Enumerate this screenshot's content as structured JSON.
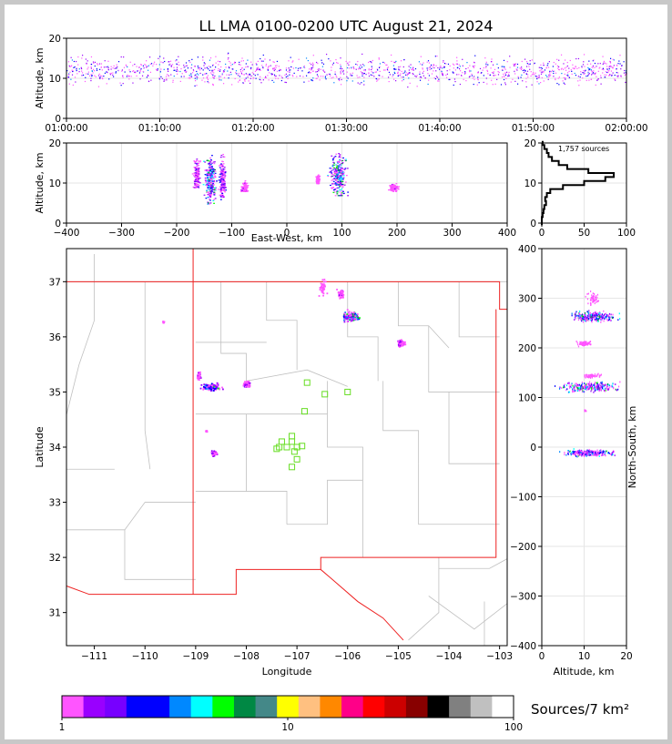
{
  "title": "LL LMA 0100-0200 UTC August 21, 2024",
  "units_label": "Sources/7 km²",
  "source_count_label": "1,757 sources",
  "colors": {
    "frame": "#c8c8c8",
    "boundary": "#ee2222",
    "county_lines": "#c0c0c0",
    "sensor_marker": "#66dd22",
    "grid": "#e6e6e6"
  },
  "chart_data": [
    {
      "id": "time-height",
      "type": "scatter",
      "ylabel": "Altitude, km",
      "ylim": [
        0,
        20
      ],
      "yticks": [
        0,
        10,
        20
      ],
      "xticks": [
        "01:00:00",
        "01:10:00",
        "01:20:00",
        "01:30:00",
        "01:40:00",
        "01:50:00",
        "02:00:00"
      ],
      "x_range_minutes": [
        0,
        60
      ],
      "altitude_band_km": [
        8,
        16
      ],
      "peak_altitude_km": 12
    },
    {
      "id": "ew-height",
      "type": "scatter",
      "xlabel": "East-West, km",
      "ylabel": "Altitude, km",
      "xlim": [
        -400,
        400
      ],
      "ylim": [
        0,
        20
      ],
      "xticks": [
        -400,
        -300,
        -200,
        -100,
        0,
        100,
        200,
        300,
        400
      ],
      "yticks": [
        0,
        10,
        20
      ],
      "clusters": [
        {
          "ew_km": -165,
          "width_km": 8,
          "alt": [
            9,
            19
          ],
          "peak": 12,
          "density": 0.6
        },
        {
          "ew_km": -140,
          "width_km": 14,
          "alt": [
            4,
            19
          ],
          "peak": 11,
          "density": 1.0
        },
        {
          "ew_km": -118,
          "width_km": 8,
          "alt": [
            6,
            19
          ],
          "peak": 11,
          "density": 0.7
        },
        {
          "ew_km": -78,
          "width_km": 8,
          "alt": [
            8,
            12
          ],
          "peak": 9,
          "density": 0.4
        },
        {
          "ew_km": 92,
          "width_km": 20,
          "alt": [
            7,
            20
          ],
          "peak": 12,
          "density": 1.0
        },
        {
          "ew_km": 55,
          "width_km": 4,
          "alt": [
            10,
            13
          ],
          "peak": 11,
          "density": 0.3
        },
        {
          "ew_km": 193,
          "width_km": 12,
          "alt": [
            8,
            11
          ],
          "peak": 9,
          "density": 0.4
        }
      ]
    },
    {
      "id": "altitude-histogram",
      "type": "line",
      "xlim": [
        0,
        100
      ],
      "ylim": [
        0,
        20
      ],
      "xticks": [
        0,
        50,
        100
      ],
      "yticks": [
        0,
        10,
        20
      ],
      "altitude_km": [
        0,
        1,
        2,
        3,
        4,
        5,
        6,
        7,
        8,
        9,
        10,
        11,
        12,
        13,
        14,
        15,
        16,
        17,
        18,
        19,
        20
      ],
      "sources": [
        0,
        0,
        1,
        2,
        3,
        5,
        4,
        6,
        10,
        25,
        50,
        75,
        85,
        55,
        30,
        20,
        12,
        8,
        6,
        3,
        1
      ]
    },
    {
      "id": "plan-view",
      "type": "heatmap",
      "xlabel": "Longitude",
      "ylabel": "Latitude",
      "xlim": [
        -111.55,
        -102.85
      ],
      "ylim": [
        30.4,
        37.6
      ],
      "xticks": [
        -111,
        -110,
        -109,
        -108,
        -107,
        -106,
        -105,
        -104,
        -103
      ],
      "yticks": [
        31,
        32,
        33,
        34,
        35,
        36,
        37
      ],
      "source_clusters": [
        {
          "lon": -105.95,
          "lat": 36.38,
          "rlon": 0.22,
          "rlat": 0.13,
          "density": 1.0
        },
        {
          "lon": -106.15,
          "lat": 36.8,
          "rlon": 0.1,
          "rlat": 0.12,
          "density": 0.4
        },
        {
          "lon": -106.5,
          "lat": 36.9,
          "rlon": 0.1,
          "rlat": 0.2,
          "density": 0.3
        },
        {
          "lon": -104.95,
          "lat": 35.9,
          "rlon": 0.1,
          "rlat": 0.08,
          "density": 0.5
        },
        {
          "lon": -108.7,
          "lat": 35.1,
          "rlon": 0.3,
          "rlat": 0.08,
          "density": 0.9
        },
        {
          "lon": -108.95,
          "lat": 35.3,
          "rlon": 0.05,
          "rlat": 0.08,
          "density": 0.5
        },
        {
          "lon": -108.0,
          "lat": 35.15,
          "rlon": 0.08,
          "rlat": 0.07,
          "density": 0.6
        },
        {
          "lon": -108.65,
          "lat": 33.9,
          "rlon": 0.08,
          "rlat": 0.06,
          "density": 0.7
        },
        {
          "lon": -108.8,
          "lat": 34.3,
          "rlon": 0.02,
          "rlat": 0.02,
          "density": 0.1
        },
        {
          "lon": -109.65,
          "lat": 36.28,
          "rlon": 0.02,
          "rlat": 0.02,
          "density": 0.1
        }
      ],
      "sensors": [
        [
          -106.8,
          35.17
        ],
        [
          -106.45,
          34.96
        ],
        [
          -106.0,
          35.0
        ],
        [
          -106.85,
          34.65
        ],
        [
          -107.1,
          34.2
        ],
        [
          -107.3,
          34.1
        ],
        [
          -107.1,
          34.1
        ],
        [
          -107.35,
          34.0
        ],
        [
          -107.2,
          34.0
        ],
        [
          -107.0,
          34.0
        ],
        [
          -106.9,
          34.02
        ],
        [
          -107.05,
          33.92
        ],
        [
          -107.0,
          33.78
        ],
        [
          -107.1,
          33.64
        ],
        [
          -107.4,
          33.97
        ]
      ]
    },
    {
      "id": "ns-height",
      "type": "scatter",
      "xlabel": "Altitude, km",
      "ylabel": "North-South, km",
      "xlim": [
        0,
        20
      ],
      "ylim": [
        -400,
        400
      ],
      "xticks": [
        0,
        10,
        20
      ],
      "yticks": [
        -400,
        -300,
        -200,
        -100,
        0,
        100,
        200,
        300,
        400
      ],
      "clusters": [
        {
          "ns_km": 265,
          "height_km": 25,
          "alt": [
            7,
            20
          ],
          "peak": 12,
          "density": 1.0
        },
        {
          "ns_km": 300,
          "height_km": 30,
          "alt": [
            10,
            14
          ],
          "peak": 12,
          "density": 0.2
        },
        {
          "ns_km": 210,
          "height_km": 12,
          "alt": [
            8,
            12
          ],
          "peak": 10,
          "density": 0.3
        },
        {
          "ns_km": 122,
          "height_km": 22,
          "alt": [
            3,
            20
          ],
          "peak": 11,
          "density": 1.0
        },
        {
          "ns_km": 145,
          "height_km": 10,
          "alt": [
            10,
            16
          ],
          "peak": 12,
          "density": 0.2
        },
        {
          "ns_km": -10,
          "height_km": 15,
          "alt": [
            3,
            19
          ],
          "peak": 11,
          "density": 0.9
        },
        {
          "ns_km": 75,
          "height_km": 4,
          "alt": [
            10,
            11
          ],
          "peak": 10,
          "density": 0.05
        }
      ]
    },
    {
      "id": "colorbar",
      "type": "bar",
      "scale": "log",
      "tick_labels": [
        "1",
        "10",
        "100"
      ],
      "colors": [
        "#ff55ff",
        "#9900ff",
        "#7700ff",
        "#0000ff",
        "#0000ff",
        "#0088ff",
        "#00ffff",
        "#00ff00",
        "#008844",
        "#448888",
        "#ffff00",
        "#ffc080",
        "#ff8800",
        "#ff0088",
        "#ff0000",
        "#cc0000",
        "#880000",
        "#000000",
        "#808080",
        "#c0c0c0",
        "#ffffff"
      ]
    }
  ]
}
